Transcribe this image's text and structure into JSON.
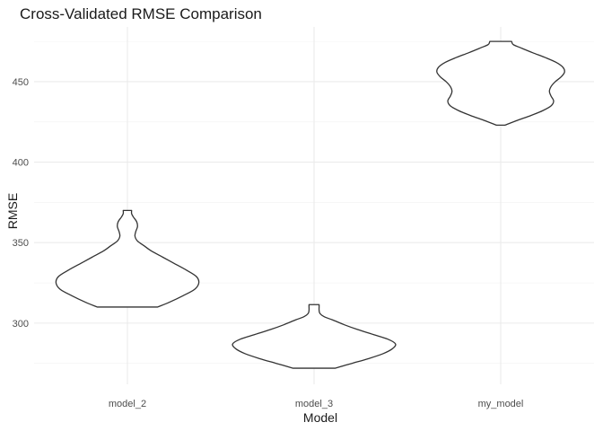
{
  "chart_data": {
    "type": "violin",
    "title": "Cross-Validated RMSE Comparison",
    "xlabel": "Model",
    "ylabel": "RMSE",
    "categories": [
      "model_2",
      "model_3",
      "my_model"
    ],
    "ylim": [
      262,
      484
    ],
    "yticks": [
      300,
      350,
      400,
      450
    ],
    "grid": true,
    "series": [
      {
        "category": "model_2",
        "min": 310,
        "max": 370,
        "density": [
          [
            310,
            0.36
          ],
          [
            313,
            0.5
          ],
          [
            317,
            0.66
          ],
          [
            321,
            0.8
          ],
          [
            325,
            0.85
          ],
          [
            329,
            0.82
          ],
          [
            333,
            0.7
          ],
          [
            337,
            0.56
          ],
          [
            341,
            0.42
          ],
          [
            345,
            0.28
          ],
          [
            348,
            0.2
          ],
          [
            351,
            0.12
          ],
          [
            354,
            0.09
          ],
          [
            357,
            0.1
          ],
          [
            360,
            0.12
          ],
          [
            363,
            0.11
          ],
          [
            366,
            0.07
          ],
          [
            368,
            0.05
          ],
          [
            370,
            0.05
          ]
        ]
      },
      {
        "category": "model_3",
        "min": 272,
        "max": 311.5,
        "density": [
          [
            272,
            0.25
          ],
          [
            275,
            0.45
          ],
          [
            278,
            0.65
          ],
          [
            281,
            0.82
          ],
          [
            284,
            0.93
          ],
          [
            287,
            0.97
          ],
          [
            290,
            0.88
          ],
          [
            293,
            0.7
          ],
          [
            296,
            0.52
          ],
          [
            299,
            0.36
          ],
          [
            302,
            0.22
          ],
          [
            304,
            0.12
          ],
          [
            306,
            0.07
          ],
          [
            308,
            0.06
          ],
          [
            310,
            0.06
          ],
          [
            311.5,
            0.06
          ]
        ]
      },
      {
        "category": "my_model",
        "min": 423,
        "max": 475,
        "density": [
          [
            423,
            0.05
          ],
          [
            426,
            0.2
          ],
          [
            429,
            0.36
          ],
          [
            432,
            0.5
          ],
          [
            435,
            0.6
          ],
          [
            438,
            0.63
          ],
          [
            441,
            0.6
          ],
          [
            444,
            0.58
          ],
          [
            447,
            0.6
          ],
          [
            450,
            0.65
          ],
          [
            453,
            0.72
          ],
          [
            456,
            0.76
          ],
          [
            459,
            0.74
          ],
          [
            462,
            0.66
          ],
          [
            465,
            0.53
          ],
          [
            468,
            0.38
          ],
          [
            471,
            0.24
          ],
          [
            473,
            0.15
          ],
          [
            475,
            0.13
          ]
        ]
      }
    ]
  }
}
